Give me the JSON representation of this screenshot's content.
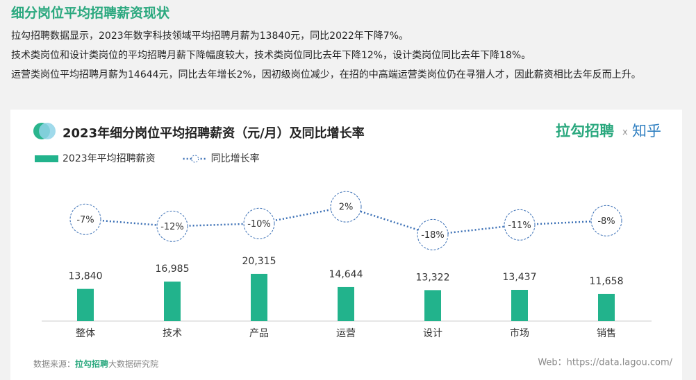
{
  "title": "细分岗位平均招聘薪资现状",
  "paragraphs": [
    "拉勾招聘数据显示，2023年数字科技领域平均招聘月薪为13840元，同比2022年下降7%。",
    "技术类岗位和设计类岗位的平均招聘月薪下降幅度较大，技术类岗位同比去年下降12%，设计类岗位同比去年下降18%。",
    "运营类岗位平均招聘月薪为14644元，同比去年增长2%，因初级岗位减少，在招的中高端运营类岗位仍在寻猎人才，因此薪资相比去年反而上升。"
  ],
  "brand": {
    "primary": "拉勾招聘",
    "sep": "x",
    "partner": "知乎"
  },
  "source": {
    "label": "数据来源：",
    "brand": "拉勾招聘",
    "suffix": "大数据研究院"
  },
  "web": "Web：https://data.lagou.com/",
  "chart_data": {
    "type": "bar",
    "title": "2023年细分岗位平均招聘薪资（元/月）及同比增长率",
    "categories": [
      "整体",
      "技术",
      "产品",
      "运营",
      "设计",
      "市场",
      "销售"
    ],
    "series": [
      {
        "name": "2023年平均招聘薪资",
        "color": "#22b38c",
        "values": [
          13840,
          16985,
          20315,
          14644,
          13322,
          13437,
          11658
        ],
        "value_labels": [
          "13,840",
          "16,985",
          "20,315",
          "14,644",
          "13,322",
          "13,437",
          "11,658"
        ]
      },
      {
        "name": "同比增长率",
        "type": "line",
        "axis": "y2",
        "color": "#3a6fb5",
        "values": [
          -7,
          -12,
          -10,
          2,
          -18,
          -11,
          -8
        ],
        "value_labels": [
          "-7%",
          "-12%",
          "-10%",
          "2%",
          "-18%",
          "-11%",
          "-8%"
        ]
      }
    ],
    "ylim": [
      0,
      60000
    ],
    "y2lim": [
      -80,
      20
    ]
  }
}
